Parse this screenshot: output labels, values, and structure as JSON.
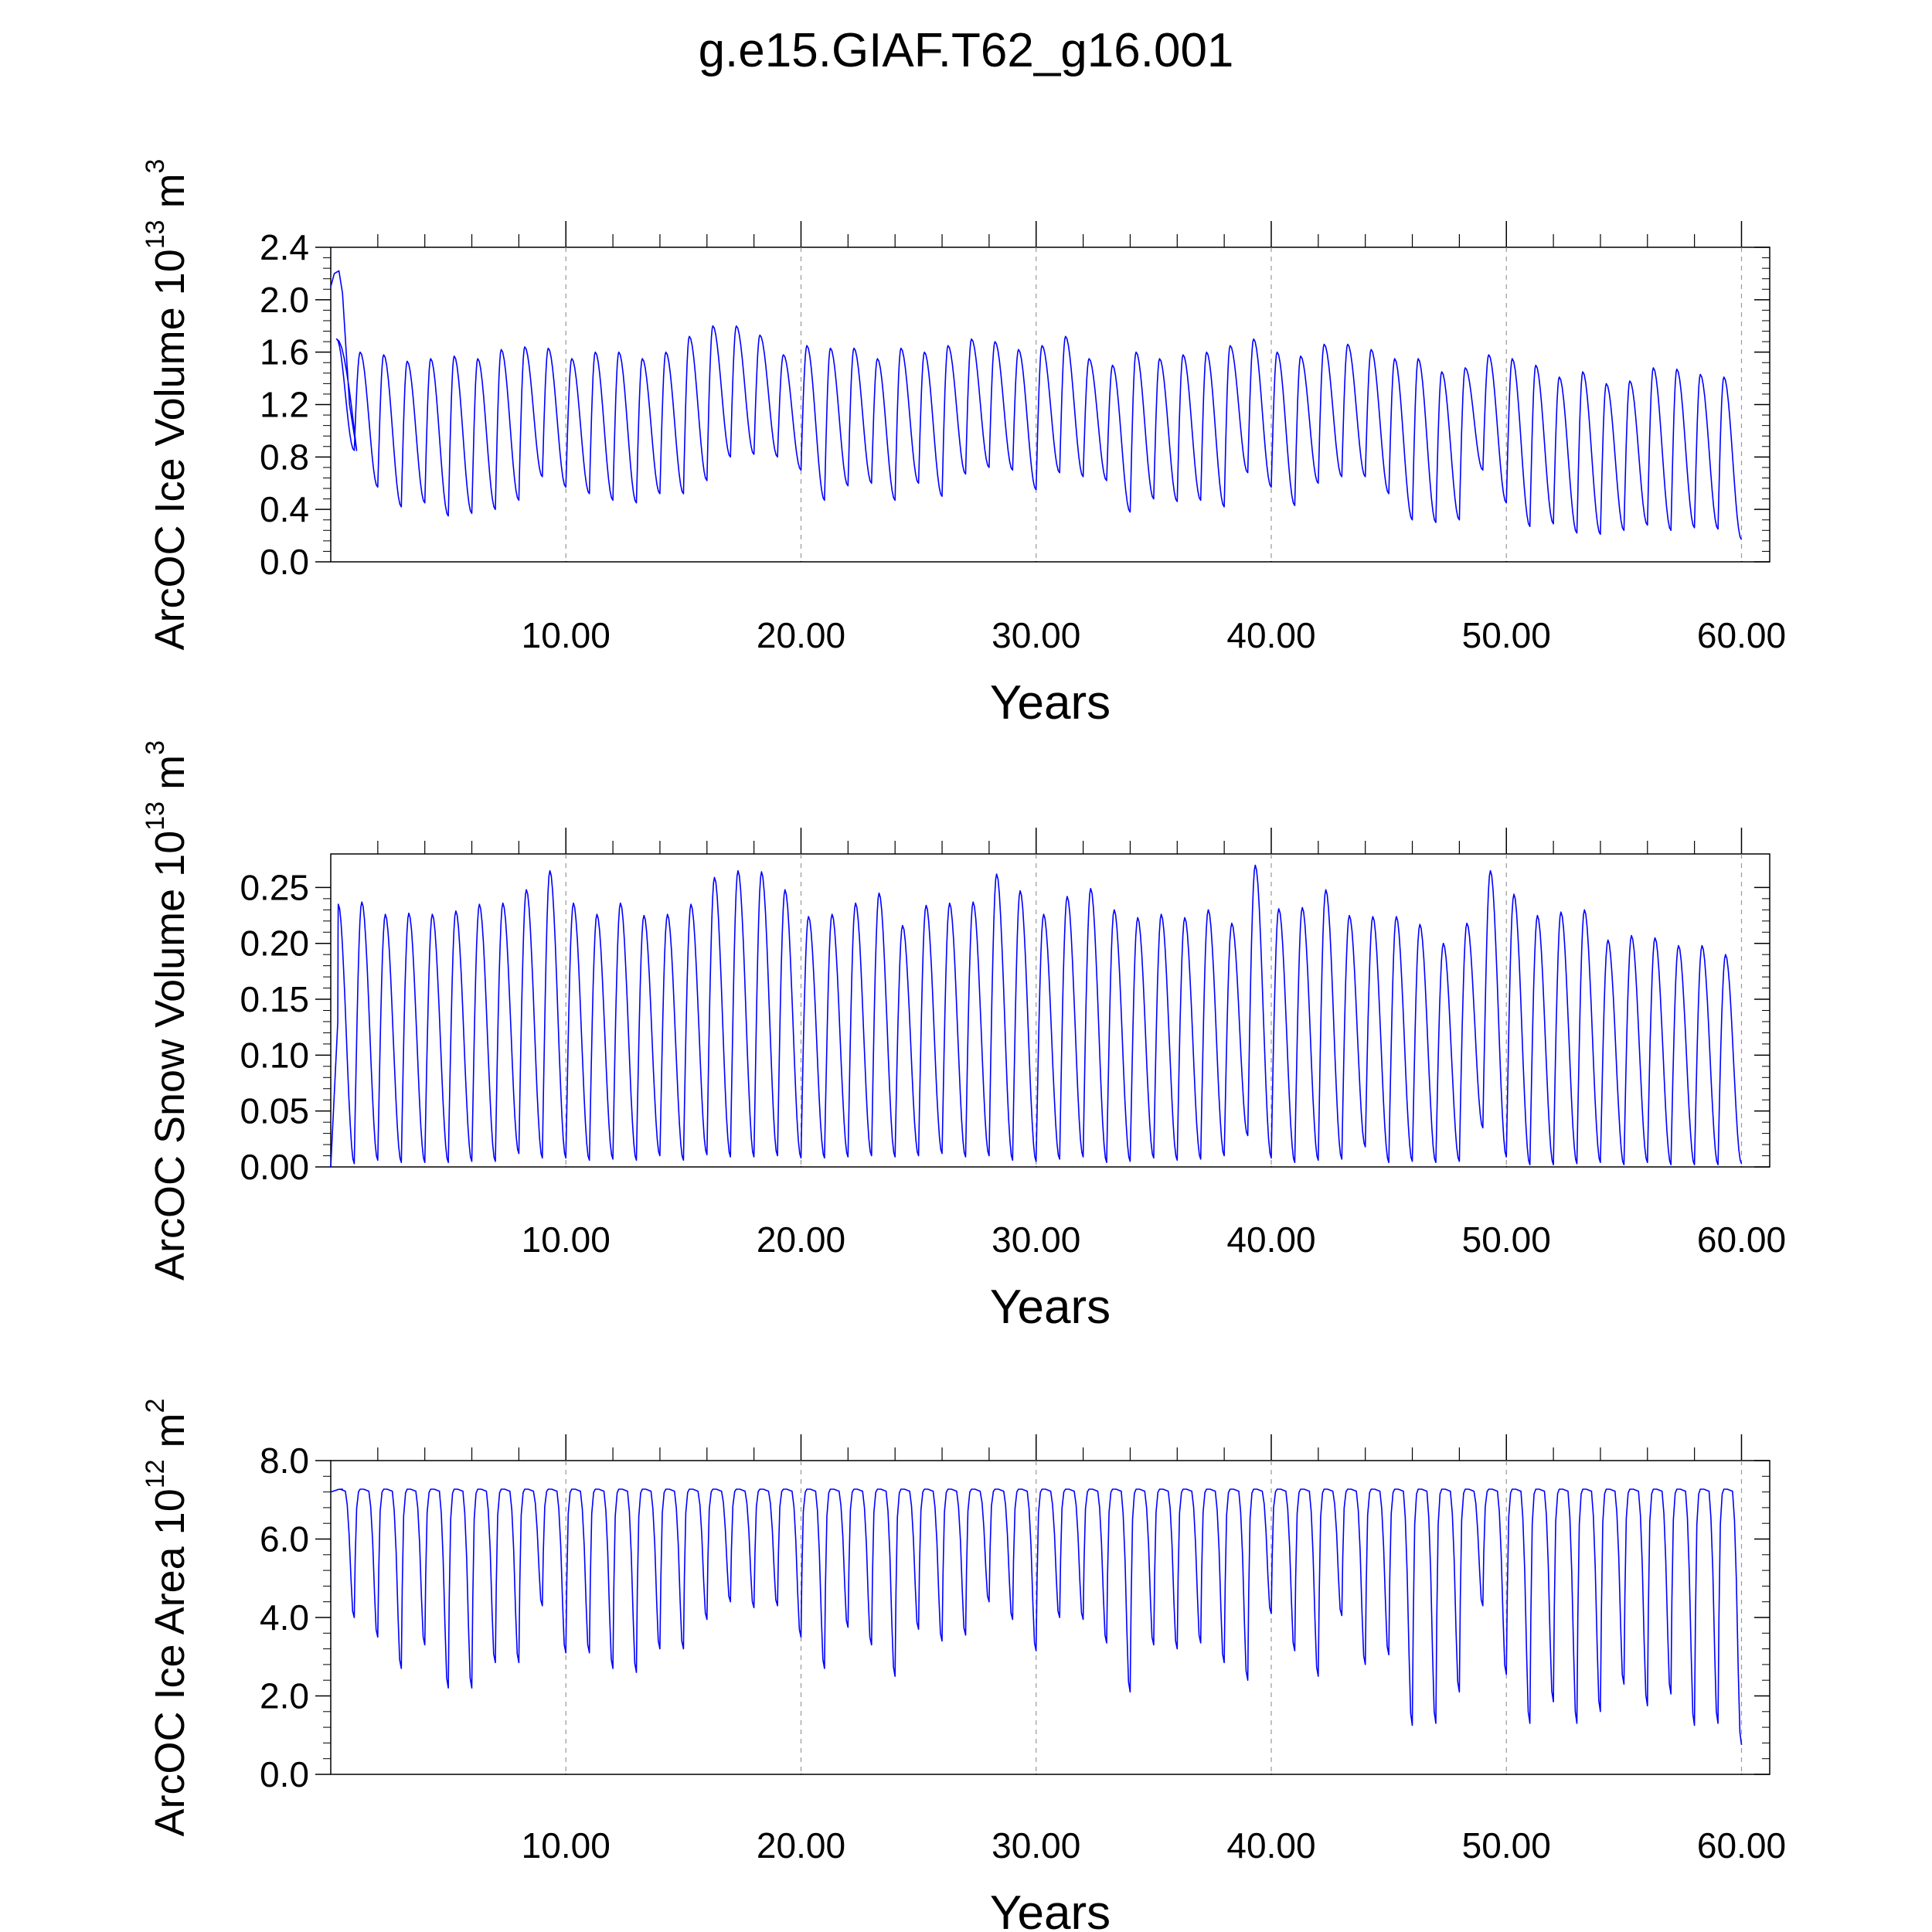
{
  "title": "g.e15.GIAF.T62_g16.001",
  "series_color": "#0000ff",
  "chart_data": [
    {
      "type": "line",
      "title": "",
      "xlabel": "Years",
      "ylabel": {
        "text": "ArcOC Ice Volume 10",
        "exp": "13",
        "unit": " m",
        "unit_exp": "3"
      },
      "xlim": [
        0,
        61.2
      ],
      "ylim": [
        0,
        2.4
      ],
      "xticks": [
        10,
        20,
        30,
        40,
        50,
        60
      ],
      "xtick_labels": [
        "10.00",
        "20.00",
        "30.00",
        "40.00",
        "50.00",
        "60.00"
      ],
      "yticks": [
        0,
        0.4,
        0.8,
        1.2,
        1.6,
        2.0,
        2.4
      ],
      "ytick_labels": [
        "0.0",
        "0.4",
        "0.8",
        "1.2",
        "1.6",
        "2.0",
        "2.4"
      ],
      "peak_offset": 0.25,
      "initial": {
        "x": [
          0,
          0.15,
          0.35,
          0.5,
          0.8,
          1.1
        ],
        "y": [
          2.1,
          2.2,
          2.22,
          2.05,
          1.2,
          0.85
        ]
      },
      "annual_max": [
        1.7,
        1.6,
        1.58,
        1.53,
        1.55,
        1.57,
        1.55,
        1.62,
        1.64,
        1.63,
        1.55,
        1.6,
        1.6,
        1.55,
        1.6,
        1.72,
        1.8,
        1.8,
        1.73,
        1.58,
        1.65,
        1.63,
        1.63,
        1.55,
        1.63,
        1.6,
        1.65,
        1.7,
        1.68,
        1.62,
        1.65,
        1.72,
        1.55,
        1.5,
        1.6,
        1.55,
        1.58,
        1.6,
        1.65,
        1.7,
        1.6,
        1.57,
        1.66,
        1.66,
        1.62,
        1.55,
        1.55,
        1.45,
        1.48,
        1.58,
        1.55,
        1.5,
        1.41,
        1.45,
        1.36,
        1.38,
        1.48,
        1.47,
        1.43,
        1.41
      ],
      "annual_min": [
        0.85,
        0.57,
        0.42,
        0.45,
        0.35,
        0.37,
        0.4,
        0.47,
        0.65,
        0.57,
        0.52,
        0.47,
        0.45,
        0.52,
        0.52,
        0.62,
        0.8,
        0.82,
        0.8,
        0.7,
        0.47,
        0.58,
        0.6,
        0.47,
        0.6,
        0.5,
        0.67,
        0.72,
        0.7,
        0.55,
        0.68,
        0.65,
        0.62,
        0.38,
        0.48,
        0.46,
        0.47,
        0.42,
        0.68,
        0.57,
        0.43,
        0.6,
        0.65,
        0.65,
        0.52,
        0.32,
        0.3,
        0.32,
        0.7,
        0.45,
        0.27,
        0.29,
        0.22,
        0.21,
        0.24,
        0.28,
        0.24,
        0.26,
        0.25,
        0.17
      ]
    },
    {
      "type": "line",
      "title": "",
      "xlabel": "Years",
      "ylabel": {
        "text": "ArcOC Snow Volume 10",
        "exp": "13",
        "unit": " m",
        "unit_exp": "3"
      },
      "xlim": [
        0,
        61.2
      ],
      "ylim": [
        0,
        0.28
      ],
      "xticks": [
        10,
        20,
        30,
        40,
        50,
        60
      ],
      "xtick_labels": [
        "10.00",
        "20.00",
        "30.00",
        "40.00",
        "50.00",
        "60.00"
      ],
      "yticks": [
        0,
        0.05,
        0.1,
        0.15,
        0.2,
        0.25
      ],
      "ytick_labels": [
        "0.00",
        "0.05",
        "0.10",
        "0.15",
        "0.20",
        "0.25"
      ],
      "peak_offset": 0.32,
      "initial": {
        "x": [
          0,
          0.3
        ],
        "y": [
          0.0,
          0.13
        ]
      },
      "annual_max": [
        0.235,
        0.237,
        0.226,
        0.227,
        0.226,
        0.229,
        0.235,
        0.236,
        0.248,
        0.265,
        0.236,
        0.226,
        0.236,
        0.225,
        0.226,
        0.235,
        0.259,
        0.265,
        0.264,
        0.248,
        0.224,
        0.226,
        0.236,
        0.245,
        0.216,
        0.234,
        0.236,
        0.237,
        0.262,
        0.247,
        0.226,
        0.242,
        0.249,
        0.23,
        0.223,
        0.226,
        0.223,
        0.23,
        0.218,
        0.27,
        0.231,
        0.232,
        0.248,
        0.225,
        0.224,
        0.224,
        0.217,
        0.2,
        0.218,
        0.265,
        0.244,
        0.225,
        0.228,
        0.23,
        0.203,
        0.207,
        0.205,
        0.198,
        0.198,
        0.19
      ],
      "annual_min": [
        0.003,
        0.006,
        0.004,
        0.004,
        0.004,
        0.005,
        0.005,
        0.012,
        0.008,
        0.008,
        0.006,
        0.007,
        0.006,
        0.01,
        0.006,
        0.011,
        0.009,
        0.009,
        0.01,
        0.008,
        0.008,
        0.009,
        0.01,
        0.009,
        0.01,
        0.012,
        0.009,
        0.01,
        0.006,
        0.005,
        0.007,
        0.009,
        0.004,
        0.005,
        0.008,
        0.006,
        0.007,
        0.01,
        0.028,
        0.008,
        0.004,
        0.006,
        0.007,
        0.018,
        0.004,
        0.005,
        0.004,
        0.005,
        0.035,
        0.009,
        0.002,
        0.002,
        0.003,
        0.004,
        0.002,
        0.004,
        0.002,
        0.002,
        0.002,
        0.003
      ]
    },
    {
      "type": "line",
      "title": "",
      "xlabel": "Years",
      "ylabel": {
        "text": "ArcOC Ice Area 10",
        "exp": "12",
        "unit": " m",
        "unit_exp": "2"
      },
      "xlim": [
        0,
        61.2
      ],
      "ylim": [
        0,
        8.0
      ],
      "xticks": [
        10,
        20,
        30,
        40,
        50,
        60
      ],
      "xtick_labels": [
        "10.00",
        "20.00",
        "30.00",
        "40.00",
        "50.00",
        "60.00"
      ],
      "yticks": [
        0,
        2.0,
        4.0,
        6.0,
        8.0
      ],
      "ytick_labels": [
        "0.0",
        "2.0",
        "4.0",
        "6.0",
        "8.0"
      ],
      "peak_offset": 0.25,
      "plateau": 0.62,
      "initial": {
        "x": [
          0,
          0.25
        ],
        "y": [
          7.2,
          7.25
        ]
      },
      "annual_max": [
        7.27,
        7.27,
        7.27,
        7.27,
        7.27,
        7.27,
        7.27,
        7.27,
        7.27,
        7.27,
        7.27,
        7.27,
        7.27,
        7.27,
        7.27,
        7.27,
        7.27,
        7.27,
        7.27,
        7.27,
        7.27,
        7.27,
        7.27,
        7.27,
        7.27,
        7.27,
        7.27,
        7.27,
        7.27,
        7.27,
        7.27,
        7.27,
        7.27,
        7.27,
        7.27,
        7.27,
        7.27,
        7.27,
        7.27,
        7.27,
        7.27,
        7.27,
        7.27,
        7.27,
        7.27,
        7.27,
        7.27,
        7.27,
        7.27,
        7.27,
        7.27,
        7.27,
        7.27,
        7.27,
        7.27,
        7.27,
        7.27,
        7.27,
        7.27,
        7.27
      ],
      "annual_min": [
        4.0,
        3.5,
        2.7,
        3.3,
        2.2,
        2.2,
        2.85,
        2.85,
        4.3,
        3.1,
        3.1,
        2.7,
        2.6,
        3.2,
        3.2,
        3.95,
        4.4,
        4.25,
        4.3,
        3.5,
        2.7,
        3.75,
        3.3,
        2.5,
        3.7,
        3.4,
        3.55,
        4.4,
        3.95,
        3.15,
        4.0,
        3.95,
        3.35,
        2.1,
        3.3,
        3.2,
        3.35,
        2.85,
        2.4,
        4.1,
        3.15,
        2.5,
        4.05,
        2.8,
        3.05,
        1.25,
        1.3,
        2.1,
        4.3,
        2.55,
        1.3,
        1.85,
        1.3,
        1.6,
        2.3,
        1.75,
        2.05,
        1.25,
        1.3,
        0.75
      ]
    }
  ]
}
